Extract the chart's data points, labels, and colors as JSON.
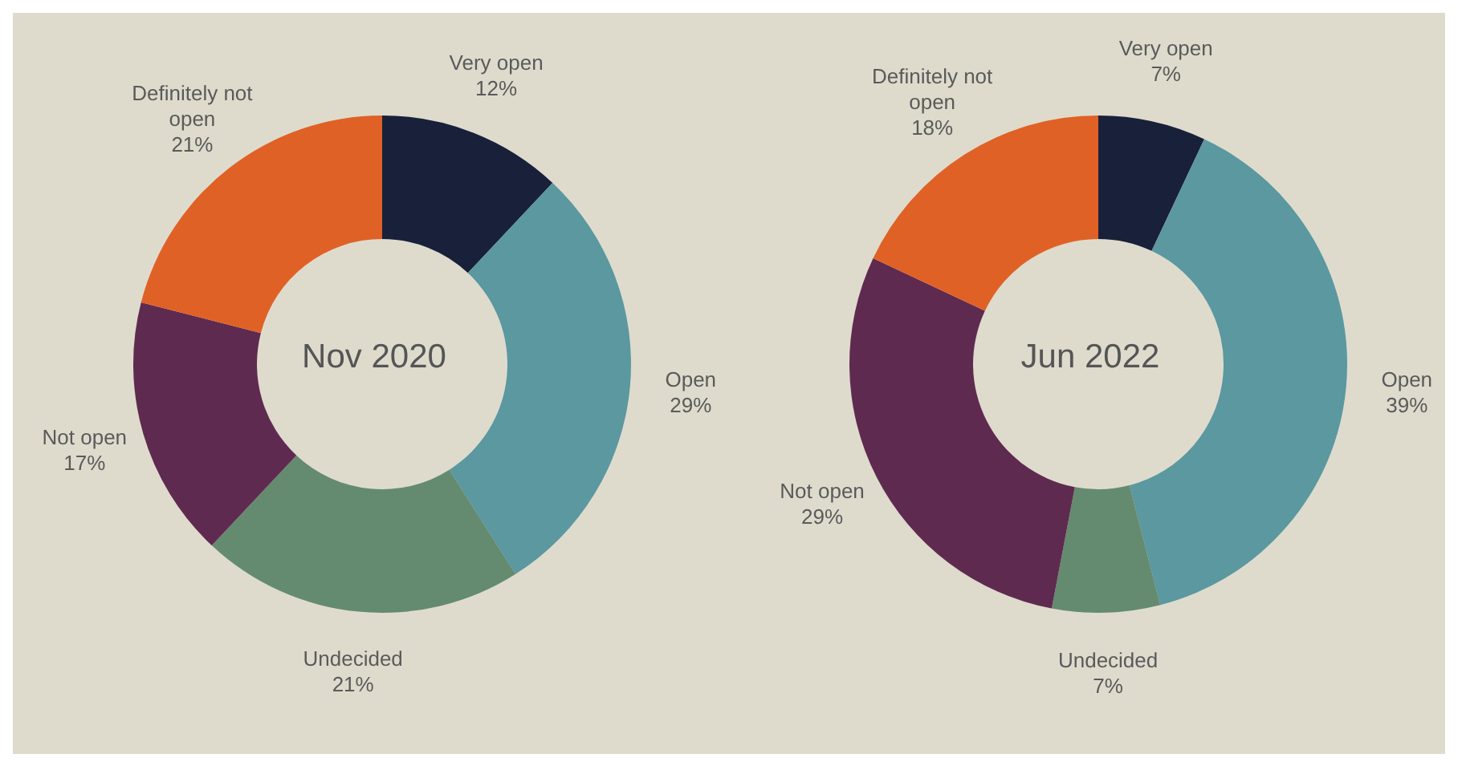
{
  "chart_data": [
    {
      "type": "donut",
      "title": "Nov 2020",
      "categories": [
        "Very open",
        "Open",
        "Undecided",
        "Not open",
        "Definitely not open"
      ],
      "values": [
        12,
        29,
        21,
        17,
        21
      ],
      "value_labels": [
        "12%",
        "29%",
        "21%",
        "17%",
        "21%"
      ],
      "colors": [
        "#19203a",
        "#5b98a0",
        "#648b6f",
        "#5f2a50",
        "#e06126"
      ],
      "legend": false
    },
    {
      "type": "donut",
      "title": "Jun 2022",
      "categories": [
        "Very open",
        "Open",
        "Undecided",
        "Not open",
        "Definitely not open"
      ],
      "values": [
        7,
        39,
        7,
        29,
        18
      ],
      "value_labels": [
        "7%",
        "39%",
        "7%",
        "29%",
        "18%"
      ],
      "colors": [
        "#19203a",
        "#5b98a0",
        "#648b6f",
        "#5f2a50",
        "#e06126"
      ],
      "legend": false
    }
  ]
}
